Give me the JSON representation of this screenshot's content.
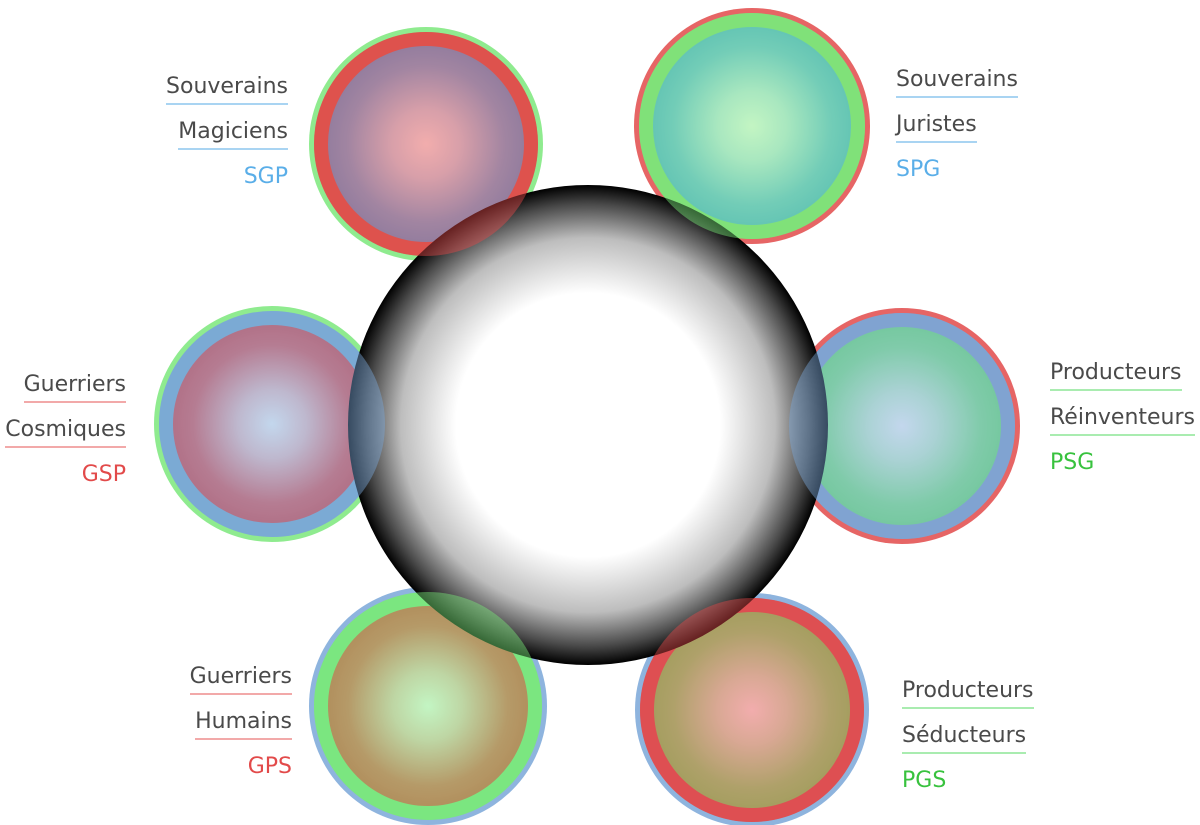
{
  "colors": {
    "blue": "#5aaee8",
    "red": "#e24a4a",
    "green": "#7be87b",
    "blue_ring": "#7aa7d8",
    "text": "#4a4a4a",
    "blue_line": "#a9d4f2",
    "red_line": "#f2a9a9",
    "green_line": "#a9ecb0"
  },
  "groups": [
    {
      "id": "sgp",
      "name1": "Souverains",
      "name2": "Magiciens",
      "code": "SGP",
      "code_color": "#5aaee8",
      "line_color": "#a9d4f2",
      "core": "blue",
      "inner_ring": "red",
      "outer_ring": "green"
    },
    {
      "id": "spg",
      "name1": "Souverains",
      "name2": "Juristes",
      "code": "SPG",
      "code_color": "#5aaee8",
      "line_color": "#a9d4f2",
      "core": "blue",
      "inner_ring": "green",
      "outer_ring": "red"
    },
    {
      "id": "psg",
      "name1": "Producteurs",
      "name2": "Réinventeurs",
      "code": "PSG",
      "code_color": "#38c23e",
      "line_color": "#a9ecb0",
      "core": "green",
      "inner_ring": "blue",
      "outer_ring": "red"
    },
    {
      "id": "pgs",
      "name1": "Producteurs",
      "name2": "Séducteurs",
      "code": "PGS",
      "code_color": "#38c23e",
      "line_color": "#a9ecb0",
      "core": "green",
      "inner_ring": "red",
      "outer_ring": "blue"
    },
    {
      "id": "gps",
      "name1": "Guerriers",
      "name2": "Humains",
      "code": "GPS",
      "code_color": "#e24a4a",
      "line_color": "#f2a9a9",
      "core": "red",
      "inner_ring": "green",
      "outer_ring": "blue"
    },
    {
      "id": "gsp",
      "name1": "Guerriers",
      "name2": "Cosmiques",
      "code": "GSP",
      "code_color": "#e24a4a",
      "line_color": "#f2a9a9",
      "core": "red",
      "inner_ring": "blue",
      "outer_ring": "green"
    }
  ]
}
